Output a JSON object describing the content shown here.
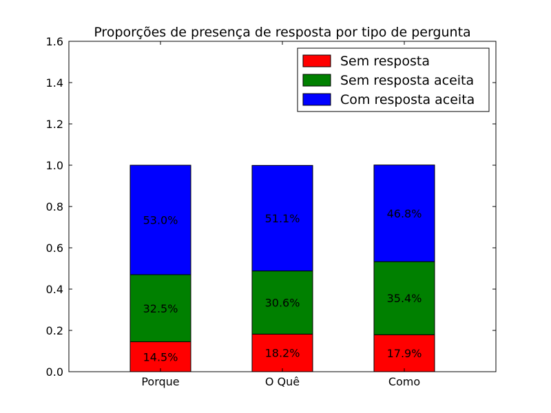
{
  "chart_data": {
    "type": "bar",
    "stacked": true,
    "title": "Proporções de presença de resposta por tipo de pergunta",
    "xlabel": "",
    "ylabel": "",
    "categories": [
      "Porque",
      "O Quê",
      "Como"
    ],
    "series": [
      {
        "name": "Sem resposta",
        "color": "#ff0000",
        "values": [
          0.145,
          0.182,
          0.179
        ],
        "labels": [
          "14.5%",
          "18.2%",
          "17.9%"
        ]
      },
      {
        "name": "Sem resposta aceita",
        "color": "#008000",
        "values": [
          0.325,
          0.306,
          0.354
        ],
        "labels": [
          "32.5%",
          "30.6%",
          "35.4%"
        ]
      },
      {
        "name": "Com resposta aceita",
        "color": "#0000ff",
        "values": [
          0.53,
          0.511,
          0.468
        ],
        "labels": [
          "53.0%",
          "51.1%",
          "46.8%"
        ]
      }
    ],
    "ylim": [
      0.0,
      1.6
    ],
    "yticks": [
      "0.0",
      "0.2",
      "0.4",
      "0.6",
      "0.8",
      "1.0",
      "1.2",
      "1.4",
      "1.6"
    ],
    "grid": false,
    "legend_position": "top-right"
  }
}
